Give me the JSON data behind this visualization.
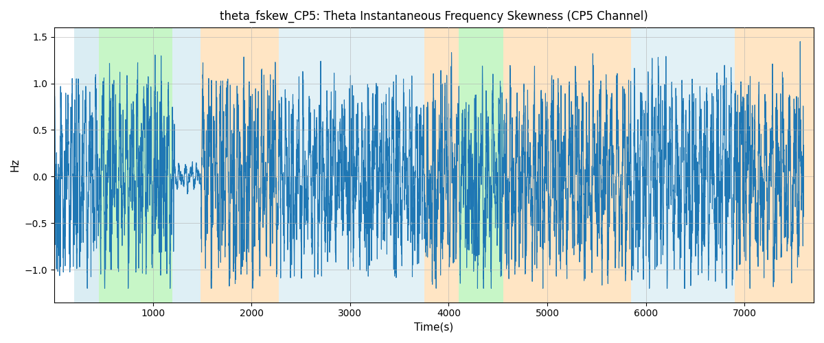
{
  "title": "theta_fskew_CP5: Theta Instantaneous Frequency Skewness (CP5 Channel)",
  "xlabel": "Time(s)",
  "ylabel": "Hz",
  "ylim": [
    -1.35,
    1.6
  ],
  "xlim": [
    0,
    7700
  ],
  "line_color": "#1f77b4",
  "line_width": 0.8,
  "background_color": "#ffffff",
  "grid_color": "#b0b0b0",
  "grid_linewidth": 0.5,
  "yticks": [
    -1.0,
    -0.5,
    0.0,
    0.5,
    1.0,
    1.5
  ],
  "xticks": [
    1000,
    2000,
    3000,
    4000,
    5000,
    6000,
    7000
  ],
  "bands": [
    {
      "xmin": 200,
      "xmax": 450,
      "color": "#add8e6",
      "alpha": 0.45
    },
    {
      "xmin": 450,
      "xmax": 1200,
      "color": "#90ee90",
      "alpha": 0.5
    },
    {
      "xmin": 1200,
      "xmax": 1480,
      "color": "#add8e6",
      "alpha": 0.4
    },
    {
      "xmin": 1480,
      "xmax": 2280,
      "color": "#ffd59e",
      "alpha": 0.6
    },
    {
      "xmin": 2280,
      "xmax": 3750,
      "color": "#add8e6",
      "alpha": 0.35
    },
    {
      "xmin": 3750,
      "xmax": 4100,
      "color": "#ffd59e",
      "alpha": 0.6
    },
    {
      "xmin": 4100,
      "xmax": 4550,
      "color": "#90ee90",
      "alpha": 0.5
    },
    {
      "xmin": 4550,
      "xmax": 5000,
      "color": "#ffd59e",
      "alpha": 0.6
    },
    {
      "xmin": 5000,
      "xmax": 5850,
      "color": "#ffd59e",
      "alpha": 0.6
    },
    {
      "xmin": 5850,
      "xmax": 6700,
      "color": "#add8e6",
      "alpha": 0.35
    },
    {
      "xmin": 6700,
      "xmax": 6900,
      "color": "#add8e6",
      "alpha": 0.35
    },
    {
      "xmin": 6900,
      "xmax": 7700,
      "color": "#ffd59e",
      "alpha": 0.6
    }
  ],
  "seed": 42,
  "n_points": 7600
}
